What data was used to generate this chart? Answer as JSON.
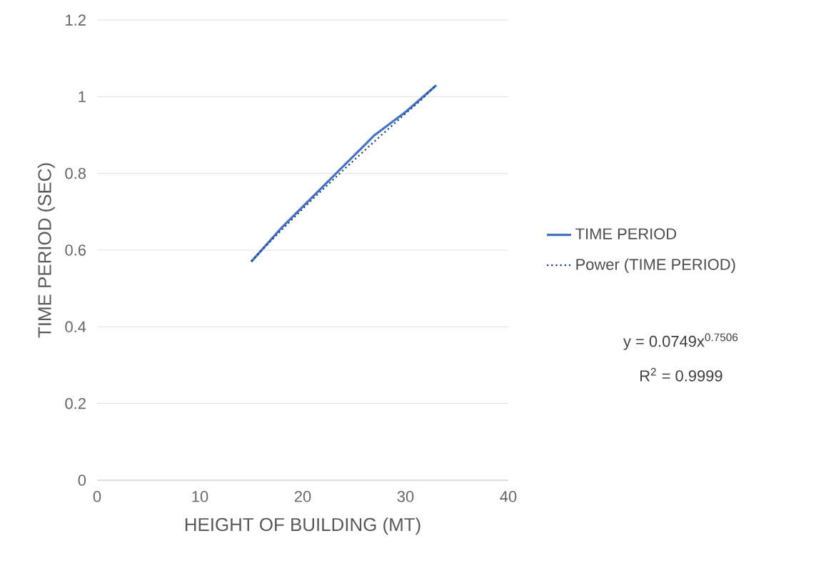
{
  "chart_data": {
    "type": "line",
    "xlabel": "HEIGHT OF BUILDING (MT)",
    "ylabel": "TIME PERIOD (SEC)",
    "x": [
      15,
      18,
      21,
      24,
      27,
      30,
      33
    ],
    "series": [
      {
        "name": "TIME PERIOD",
        "color": "#4472c4",
        "values": [
          0.57,
          0.66,
          0.74,
          0.82,
          0.9,
          0.96,
          1.03
        ],
        "line_style": "solid"
      },
      {
        "name": "Power (TIME PERIOD)",
        "color": "#1f3f7a",
        "x": [
          15,
          16.5,
          18,
          19.5,
          21,
          22.5,
          24,
          25.5,
          27,
          28.5,
          30,
          31.5,
          33
        ],
        "values": [
          0.571,
          0.613,
          0.654,
          0.694,
          0.734,
          0.772,
          0.81,
          0.847,
          0.884,
          0.92,
          0.956,
          0.991,
          1.031
        ],
        "line_style": "dotted"
      }
    ],
    "xlim": [
      0,
      40
    ],
    "xticks": [
      0,
      10,
      20,
      30,
      40
    ],
    "ylim": [
      0,
      1.2
    ],
    "yticks": [
      0,
      0.2,
      0.4,
      0.6,
      0.8,
      1,
      1.2
    ],
    "grid": "y",
    "legend": "right",
    "marker": "none",
    "annotations": [
      "y = 0.0749x$^{0.7506}$",
      "R$^{2}$ = 0.9999"
    ]
  }
}
